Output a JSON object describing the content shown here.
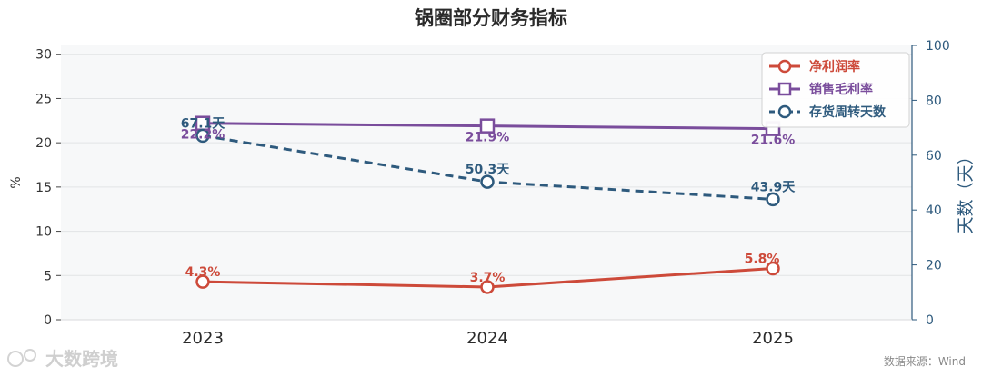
{
  "chart_data": {
    "type": "line",
    "title": "锅圈部分财务指标",
    "categories": [
      "2023",
      "2024",
      "2025"
    ],
    "ylabel_left": "%",
    "ylabel_right": "天数（天）",
    "ylim_left": [
      0,
      31
    ],
    "yticks_left": [
      "0",
      "5",
      "10",
      "15",
      "20",
      "25",
      "30"
    ],
    "ylim_right": [
      0,
      100
    ],
    "yticks_right": [
      "0",
      "20",
      "40",
      "60",
      "80",
      "100"
    ],
    "grid": true,
    "legend_position": "top-right",
    "series": [
      {
        "name": "净利润率",
        "axis": "left",
        "values": [
          4.3,
          3.7,
          5.8
        ],
        "labels": [
          "4.3%",
          "3.7%",
          "5.8%"
        ],
        "color": "#cd4a3a",
        "marker": "circle",
        "dash": "solid"
      },
      {
        "name": "销售毛利率",
        "axis": "left",
        "values": [
          22.2,
          21.9,
          21.6
        ],
        "labels": [
          "22.2%",
          "21.9%",
          "21.6%"
        ],
        "color": "#7a4d9c",
        "marker": "square",
        "dash": "solid"
      },
      {
        "name": "存货周转天数",
        "axis": "right",
        "values": [
          67.1,
          50.3,
          43.9
        ],
        "labels": [
          "67.1天",
          "50.3天",
          "43.9天"
        ],
        "color": "#2e5a7d",
        "marker": "circle",
        "dash": "dashed"
      }
    ]
  },
  "source_text": "数据来源：Wind",
  "watermark_text": "大数跨境"
}
